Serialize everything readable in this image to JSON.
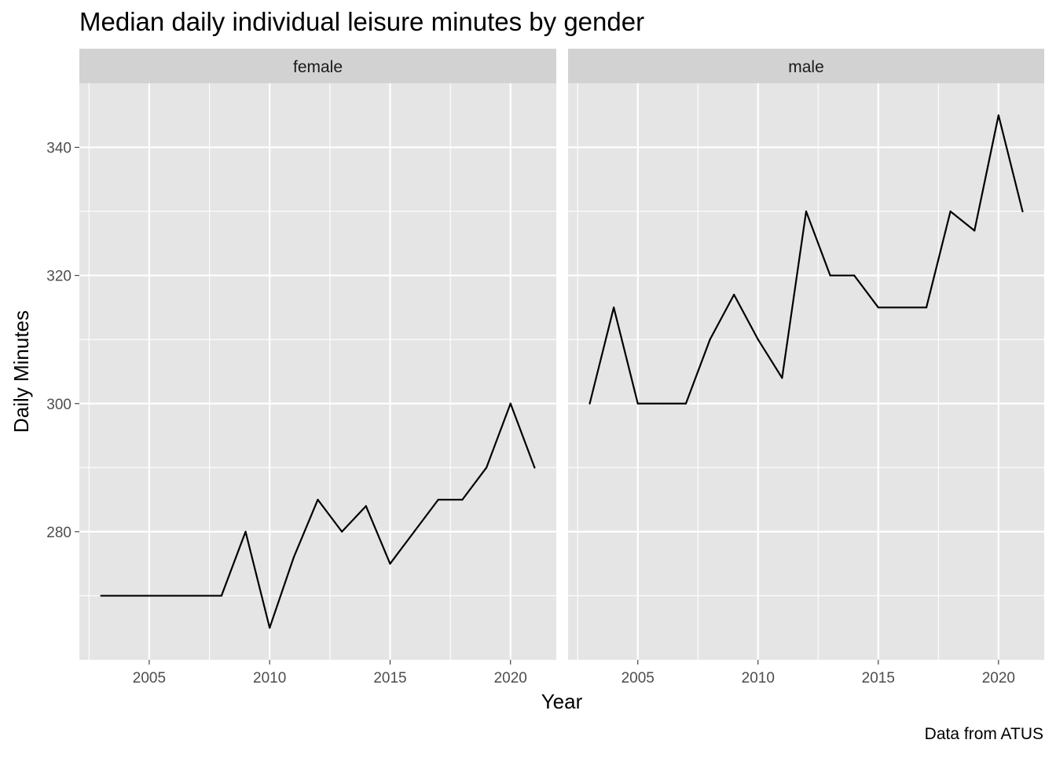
{
  "chart_data": {
    "type": "line",
    "title": "Median daily individual leisure minutes by gender",
    "xlabel": "Year",
    "ylabel": "Daily Minutes",
    "caption": "Data from ATUS",
    "facets": [
      "female",
      "male"
    ],
    "x": [
      2003,
      2004,
      2005,
      2006,
      2007,
      2008,
      2009,
      2010,
      2011,
      2012,
      2013,
      2014,
      2015,
      2016,
      2017,
      2018,
      2019,
      2020,
      2021
    ],
    "series": [
      {
        "name": "female",
        "values": [
          270,
          270,
          270,
          270,
          270,
          270,
          280,
          265,
          276,
          285,
          280,
          284,
          275,
          280,
          285,
          285,
          290,
          300,
          290
        ]
      },
      {
        "name": "male",
        "values": [
          300,
          315,
          300,
          300,
          300,
          310,
          317,
          310,
          304,
          330,
          320,
          320,
          315,
          315,
          315,
          330,
          327,
          345,
          330
        ]
      }
    ],
    "x_ticks": [
      2005,
      2010,
      2015,
      2020
    ],
    "y_ticks": [
      280,
      300,
      320,
      340
    ],
    "xlim": [
      2002.1,
      2021.9
    ],
    "ylim": [
      260,
      350
    ],
    "line_color": "#000000",
    "panel_background": "#e5e5e5",
    "strip_background": "#d2d2d2",
    "grid": true,
    "legend": "none"
  }
}
